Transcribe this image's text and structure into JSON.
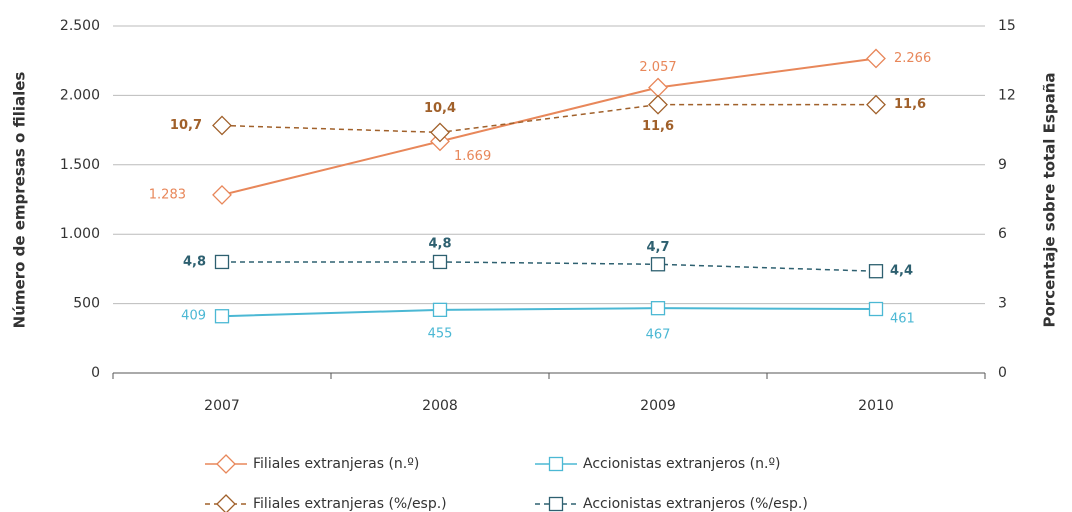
{
  "chart_data": {
    "type": "line",
    "y_label": "Número de empresas o filiales",
    "y2_label": "Porcentaje sobre total España",
    "categories": [
      "2007",
      "2008",
      "2009",
      "2010"
    ],
    "ylim": [
      0,
      2500
    ],
    "yticks": [
      0,
      500,
      {
        "value": 1000,
        "label": "1.000"
      },
      {
        "value": 1500,
        "label": "1.500"
      },
      {
        "value": 2000,
        "label": "2.000"
      },
      {
        "value": 2500,
        "label": "2.500"
      }
    ],
    "y2lim": [
      0,
      15
    ],
    "y2ticks": [
      0,
      3,
      6,
      9,
      12,
      15
    ],
    "grid": true,
    "legend": "bottom",
    "series": [
      {
        "name": "Filiales extranjeras (n.º)",
        "color": "#e8875a",
        "marker": "diamond",
        "dashed": false,
        "values": [
          1283,
          1669,
          2057,
          2266
        ],
        "value_labels": [
          "1.283",
          "1.669",
          "2.057",
          "2.266"
        ]
      },
      {
        "name": "Accionistas extranjeros (n.º)",
        "color": "#4bb8d4",
        "marker": "square",
        "dashed": false,
        "values": [
          409,
          455,
          467,
          461
        ]
      },
      {
        "name": "Filiales extranjeras (%/esp.)",
        "color": "#a0602a",
        "marker": "diamond",
        "dashed": true,
        "axis": "y2",
        "values": [
          10.7,
          10.4,
          11.6,
          11.6
        ],
        "value_labels": [
          "10,7",
          "10,4",
          "11,6",
          "11,6"
        ]
      },
      {
        "name": "Accionistas extranjeros (%/esp.)",
        "color": "#2e6070",
        "marker": "square",
        "dashed": true,
        "axis": "y2",
        "values": [
          4.8,
          4.8,
          4.7,
          4.4
        ],
        "value_labels": [
          "4,8",
          "4,8",
          "4,7",
          "4,4"
        ]
      }
    ]
  }
}
